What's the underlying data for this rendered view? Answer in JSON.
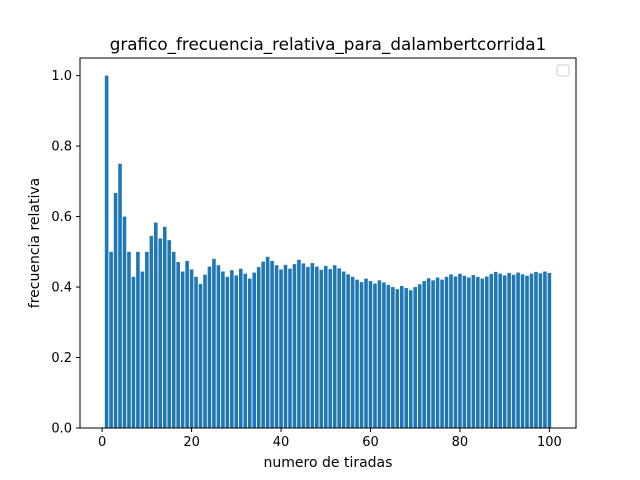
{
  "chart_data": {
    "type": "bar",
    "title": "grafico_frecuencia_relativa_para_dalambertcorrida1",
    "xlabel": "numero de tiradas",
    "ylabel": "frecuencia relativa",
    "xlim": [
      -4.95,
      105.95
    ],
    "ylim": [
      0,
      1.05
    ],
    "x_ticks": [
      0,
      20,
      40,
      60,
      80,
      100
    ],
    "y_ticks": [
      0.0,
      0.2,
      0.4,
      0.6,
      0.8,
      1.0
    ],
    "x_tick_labels": [
      "0",
      "20",
      "40",
      "60",
      "80",
      "100"
    ],
    "y_tick_labels": [
      "0.0",
      "0.2",
      "0.4",
      "0.6",
      "0.8",
      "1.0"
    ],
    "legend": "top-right (empty)",
    "grid": false,
    "bar_color": "#1f77b4",
    "x": [
      1,
      2,
      3,
      4,
      5,
      6,
      7,
      8,
      9,
      10,
      11,
      12,
      13,
      14,
      15,
      16,
      17,
      18,
      19,
      20,
      21,
      22,
      23,
      24,
      25,
      26,
      27,
      28,
      29,
      30,
      31,
      32,
      33,
      34,
      35,
      36,
      37,
      38,
      39,
      40,
      41,
      42,
      43,
      44,
      45,
      46,
      47,
      48,
      49,
      50,
      51,
      52,
      53,
      54,
      55,
      56,
      57,
      58,
      59,
      60,
      61,
      62,
      63,
      64,
      65,
      66,
      67,
      68,
      69,
      70,
      71,
      72,
      73,
      74,
      75,
      76,
      77,
      78,
      79,
      80,
      81,
      82,
      83,
      84,
      85,
      86,
      87,
      88,
      89,
      90,
      91,
      92,
      93,
      94,
      95,
      96,
      97,
      98,
      99,
      100
    ],
    "values": [
      1.0,
      0.5,
      0.667,
      0.75,
      0.6,
      0.5,
      0.429,
      0.5,
      0.444,
      0.5,
      0.545,
      0.583,
      0.538,
      0.571,
      0.533,
      0.5,
      0.471,
      0.444,
      0.474,
      0.45,
      0.429,
      0.409,
      0.435,
      0.458,
      0.48,
      0.462,
      0.444,
      0.429,
      0.448,
      0.433,
      0.452,
      0.438,
      0.424,
      0.441,
      0.457,
      0.472,
      0.486,
      0.474,
      0.462,
      0.45,
      0.463,
      0.452,
      0.465,
      0.477,
      0.467,
      0.457,
      0.468,
      0.458,
      0.449,
      0.46,
      0.451,
      0.462,
      0.453,
      0.444,
      0.436,
      0.429,
      0.421,
      0.414,
      0.424,
      0.417,
      0.41,
      0.419,
      0.413,
      0.406,
      0.4,
      0.394,
      0.403,
      0.397,
      0.391,
      0.4,
      0.408,
      0.417,
      0.425,
      0.419,
      0.427,
      0.421,
      0.429,
      0.436,
      0.43,
      0.438,
      0.432,
      0.427,
      0.434,
      0.429,
      0.424,
      0.43,
      0.437,
      0.443,
      0.438,
      0.433,
      0.44,
      0.435,
      0.441,
      0.436,
      0.432,
      0.438,
      0.443,
      0.439,
      0.444,
      0.44
    ]
  }
}
